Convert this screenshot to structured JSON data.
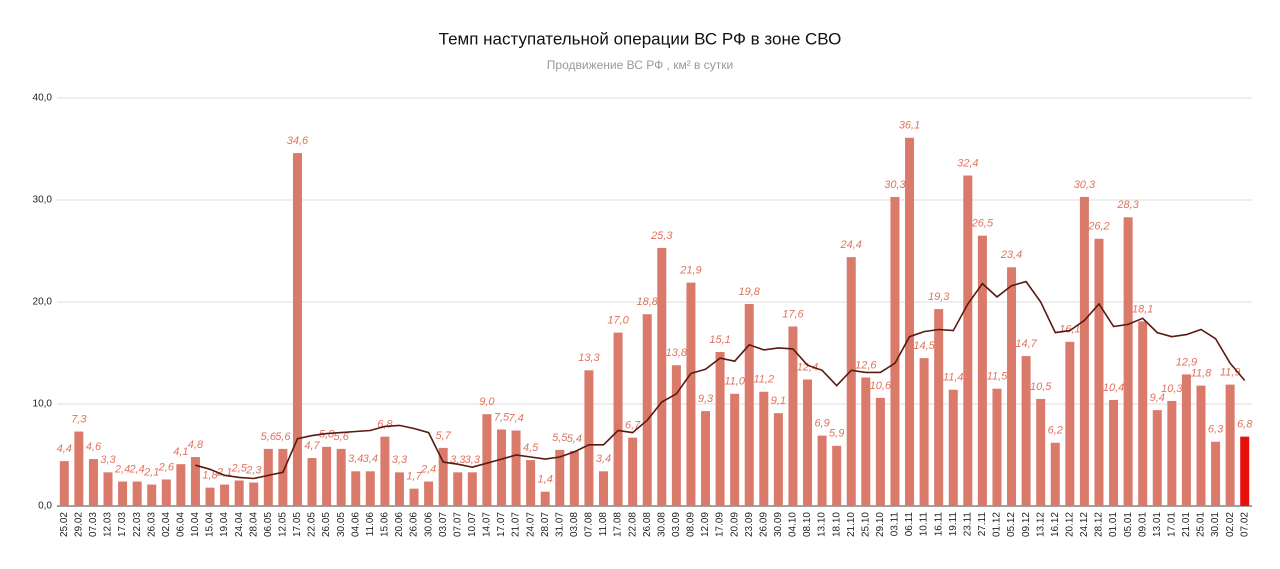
{
  "chart_data": {
    "type": "bar",
    "title": "Темп наступательной операции ВС РФ в зоне СВО",
    "subtitle": "Продвижение ВС РФ , км² в сутки",
    "categories": [
      "25.02",
      "29.02",
      "07.03",
      "12.03",
      "17.03",
      "22.03",
      "26.03",
      "02.04",
      "06.04",
      "10.04",
      "15.04",
      "19.04",
      "24.04",
      "28.04",
      "06.05",
      "12.05",
      "17.05",
      "22.05",
      "26.05",
      "30.05",
      "04.06",
      "11.06",
      "15.06",
      "20.06",
      "26.06",
      "30.06",
      "03.07",
      "07.07",
      "10.07",
      "14.07",
      "17.07",
      "21.07",
      "24.07",
      "28.07",
      "31.07",
      "03.08",
      "07.08",
      "11.08",
      "17.08",
      "22.08",
      "26.08",
      "30.08",
      "03.09",
      "08.09",
      "12.09",
      "17.09",
      "20.09",
      "23.09",
      "26.09",
      "30.09",
      "04.10",
      "08.10",
      "13.10",
      "18.10",
      "21.10",
      "25.10",
      "29.10",
      "03.11",
      "06.11",
      "10.11",
      "16.11",
      "19.11",
      "23.11",
      "27.11",
      "01.12",
      "05.12",
      "09.12",
      "13.12",
      "16.12",
      "20.12",
      "24.12",
      "28.12",
      "01.01",
      "05.01",
      "09.01",
      "13.01",
      "17.01",
      "21.01",
      "25.01",
      "30.01",
      "02.02",
      "07.02"
    ],
    "series": [
      {
        "type": "bar",
        "color": "#d97a6a",
        "colors": {
          "81": "#e8100c"
        },
        "values": [
          4.4,
          7.3,
          4.6,
          3.3,
          2.4,
          2.4,
          2.1,
          2.6,
          4.1,
          4.8,
          1.8,
          2.1,
          2.5,
          2.3,
          5.6,
          5.6,
          34.6,
          4.7,
          5.8,
          5.6,
          3.4,
          3.4,
          6.8,
          3.3,
          1.7,
          2.4,
          5.7,
          3.3,
          3.3,
          9.0,
          7.5,
          7.4,
          4.5,
          1.4,
          5.5,
          5.4,
          13.3,
          3.4,
          17.0,
          6.7,
          18.8,
          25.3,
          13.8,
          21.9,
          9.3,
          15.1,
          11.0,
          19.8,
          11.2,
          9.1,
          17.6,
          12.4,
          6.9,
          5.9,
          24.4,
          12.6,
          10.6,
          30.3,
          36.1,
          14.5,
          19.3,
          11.4,
          32.4,
          26.5,
          11.5,
          23.4,
          14.7,
          10.5,
          6.2,
          16.1,
          30.3,
          26.2,
          10.4,
          28.3,
          18.1,
          9.4,
          10.3,
          12.9,
          11.8,
          6.3,
          11.9,
          6.8
        ],
        "value_labels": [
          "4,4",
          "7,3",
          "4,6",
          "3,3",
          "2,4",
          "2,4",
          "2,1",
          "2,6",
          "4,1",
          "4,8",
          "1,8",
          "2,1",
          "2,5",
          "2,3",
          "5,6",
          "5,6",
          "34,6",
          "4,7",
          "5,8",
          "5,6",
          "3,4",
          "3,4",
          "6,8",
          "3,3",
          "1,7",
          "2,4",
          "5,7",
          "3,3",
          "3,3",
          "9,0",
          "7,5",
          "7,4",
          "4,5",
          "1,4",
          "5,5",
          "5,4",
          "13,3",
          "3,4",
          "17,0",
          "6,7",
          "18,8",
          "25,3",
          "13,8",
          "21,9",
          "9,3",
          "15,1",
          "11,0",
          "19,8",
          "11,2",
          "9,1",
          "17,6",
          "12,4",
          "6,9",
          "5,9",
          "24,4",
          "12,6",
          "10,6",
          "30,3",
          "36,1",
          "14,5",
          "19,3",
          "11,4",
          "32,4",
          "26,5",
          "11,5",
          "23,4",
          "14,7",
          "10,5",
          "6,2",
          "16,1",
          "30,3",
          "26,2",
          "10,4",
          "28,3",
          "18,1",
          "9,4",
          "10,3",
          "12,9",
          "11,8",
          "6,3",
          "11,9",
          "6,8"
        ]
      },
      {
        "type": "line",
        "color": "#5a1a12",
        "values": [
          null,
          null,
          null,
          null,
          null,
          null,
          null,
          null,
          null,
          4.0,
          3.6,
          3.0,
          2.8,
          2.7,
          3.0,
          3.3,
          6.6,
          6.9,
          7.1,
          7.2,
          7.3,
          7.4,
          7.8,
          7.9,
          7.6,
          7.2,
          4.3,
          4.1,
          3.8,
          4.2,
          4.6,
          5.0,
          4.8,
          4.6,
          4.8,
          5.3,
          6.0,
          6.0,
          7.4,
          7.2,
          8.4,
          10.2,
          11.0,
          13.0,
          13.4,
          14.5,
          14.2,
          15.8,
          15.3,
          15.5,
          15.4,
          13.8,
          13.3,
          11.8,
          13.3,
          13.1,
          13.1,
          14.0,
          16.6,
          17.1,
          17.3,
          17.2,
          19.8,
          21.8,
          20.5,
          21.6,
          22.0,
          20.0,
          17.0,
          17.2,
          18.2,
          19.8,
          17.6,
          17.8,
          18.4,
          17.0,
          16.6,
          16.8,
          17.3,
          16.4,
          14.0,
          12.3
        ]
      }
    ],
    "ylim": [
      0,
      40
    ],
    "yticks": [
      {
        "value": 0,
        "label": "0,0"
      },
      {
        "value": 10,
        "label": "10,0"
      },
      {
        "value": 20,
        "label": "20,0"
      },
      {
        "value": 30,
        "label": "30,0"
      },
      {
        "value": 40,
        "label": "40,0"
      }
    ],
    "grid": true
  }
}
